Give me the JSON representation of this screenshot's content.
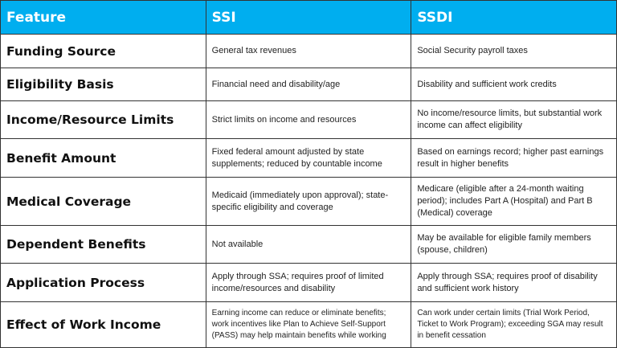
{
  "colors": {
    "header_bg": "#00aeef",
    "header_text": "#ffffff",
    "border": "#333333"
  },
  "headers": [
    "Feature",
    "SSI",
    "SSDI"
  ],
  "rows": [
    {
      "feature": "Funding Source",
      "ssi": "General tax revenues",
      "ssdi": "Social Security payroll taxes"
    },
    {
      "feature": "Eligibility Basis",
      "ssi": "Financial need and disability/age",
      "ssdi": "Disability and sufficient work credits"
    },
    {
      "feature": "Income/Resource Limits",
      "ssi": "Strict limits on income and resources",
      "ssdi": "No income/resource limits, but substantial work income can affect eligibility"
    },
    {
      "feature": "Benefit Amount",
      "ssi": "Fixed federal amount adjusted by state supplements; reduced by countable income",
      "ssdi": "Based on earnings record; higher past earnings result in higher benefits"
    },
    {
      "feature": "Medical Coverage",
      "ssi": "Medicaid (immediately upon approval); state-specific eligibility and coverage",
      "ssdi": "Medicare (eligible after a 24-month waiting period); includes Part A (Hospital) and Part B (Medical) coverage"
    },
    {
      "feature": "Dependent Benefits",
      "ssi": "Not available",
      "ssdi": "May be available for eligible family members (spouse, children)"
    },
    {
      "feature": "Application Process",
      "ssi": "Apply through SSA; requires proof of limited income/resources and disability",
      "ssdi": "Apply through SSA; requires proof of disability and sufficient work history"
    },
    {
      "feature": "Effect of Work Income",
      "ssi": "Earning income can reduce or eliminate benefits; work incentives like Plan to Achieve Self-Support (PASS) may help maintain benefits while working",
      "ssdi": "Can work under certain limits (Trial Work Period, Ticket to Work Program); exceeding SGA may result in benefit cessation"
    }
  ]
}
